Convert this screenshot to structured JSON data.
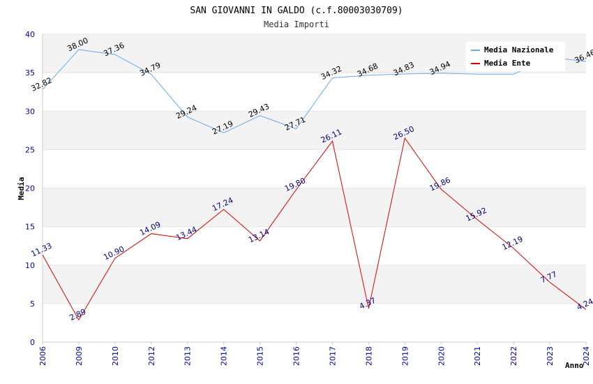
{
  "chart_data": {
    "type": "line",
    "title": "SAN GIOVANNI IN GALDO (c.f.80003030709)",
    "subtitle": "Media Importi",
    "xlabel": "Anno",
    "ylabel": "Media",
    "ylim": [
      0,
      40
    ],
    "yticks": [
      0,
      5,
      10,
      15,
      20,
      25,
      30,
      35,
      40
    ],
    "categories": [
      "2006",
      "2009",
      "2010",
      "2012",
      "2013",
      "2014",
      "2015",
      "2016",
      "2017",
      "2018",
      "2019",
      "2020",
      "2021",
      "2022",
      "2023",
      "2024"
    ],
    "legend_position": "top-right",
    "grid": true,
    "series": [
      {
        "name": "Media Nazionale",
        "color": "#66aaee",
        "values": [
          32.82,
          38.0,
          37.36,
          34.79,
          29.24,
          27.19,
          29.43,
          27.71,
          34.32,
          34.68,
          34.83,
          34.94,
          34.8,
          34.8,
          37.0,
          36.46
        ],
        "labels": [
          "32.82",
          "38.00",
          "37.36",
          "34.79",
          "29.24",
          "27.19",
          "29.43",
          "27.71",
          "34.32",
          "34.68",
          "34.83",
          "34.94",
          "",
          "",
          "",
          "36.46"
        ]
      },
      {
        "name": "Media Ente",
        "color": "#dd0000",
        "values": [
          11.33,
          2.89,
          10.9,
          14.09,
          13.44,
          17.24,
          13.14,
          19.8,
          26.11,
          4.37,
          26.5,
          19.86,
          15.92,
          12.19,
          7.77,
          4.24
        ],
        "labels": [
          "11.33",
          "2.89",
          "10.90",
          "14.09",
          "13.44",
          "17.24",
          "13.14",
          "19.80",
          "26.11",
          "4.37",
          "26.50",
          "19.86",
          "15.92",
          "12.19",
          "7.77",
          "4.24"
        ]
      }
    ]
  }
}
